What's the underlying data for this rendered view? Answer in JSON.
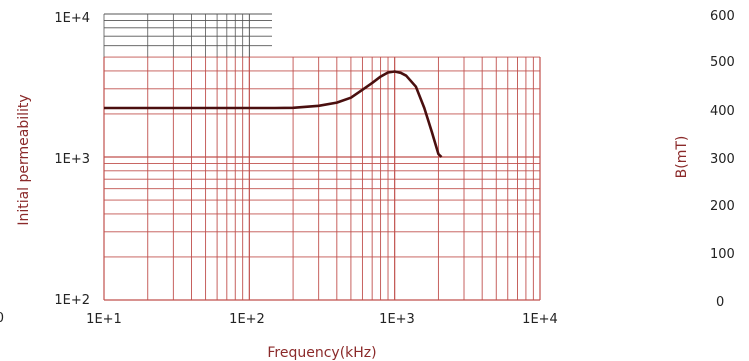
{
  "chart_data": [
    {
      "type": "line",
      "xlabel": "Frequency(kHz)",
      "ylabel": "Initial permeability",
      "x_scale": "log",
      "y_scale": "log",
      "xlim": [
        10,
        10000
      ],
      "ylim": [
        100,
        10000
      ],
      "x_ticks": [
        "1E+1",
        "1E+2",
        "1E+3",
        "1E+4"
      ],
      "y_ticks": [
        "1E+4",
        "1E+3",
        "1E+2"
      ],
      "grid": true,
      "series": [
        {
          "x": [
            10,
            20,
            50,
            100,
            150,
            200,
            300,
            400,
            500,
            600,
            700,
            800,
            900,
            1000,
            1100,
            1200,
            1400,
            1600,
            1800,
            2000,
            2100
          ],
          "y": [
            2200,
            2200,
            2200,
            2200,
            2200,
            2210,
            2280,
            2400,
            2600,
            2950,
            3300,
            3650,
            3900,
            3960,
            3880,
            3700,
            3100,
            2200,
            1500,
            1050,
            1000
          ]
        }
      ]
    },
    {
      "type": "line",
      "ylabel": "B(mT)",
      "y_ticks": [
        "600",
        "500",
        "400",
        "300",
        "200",
        "100",
        "0"
      ]
    }
  ],
  "left_edge_tick": "0",
  "colors": {
    "grid_major": "#c0504d",
    "grid_top": "#555555",
    "curve": "#4a0f0f",
    "axis_title": "#8b2a2a",
    "tick_text": "#222222"
  }
}
